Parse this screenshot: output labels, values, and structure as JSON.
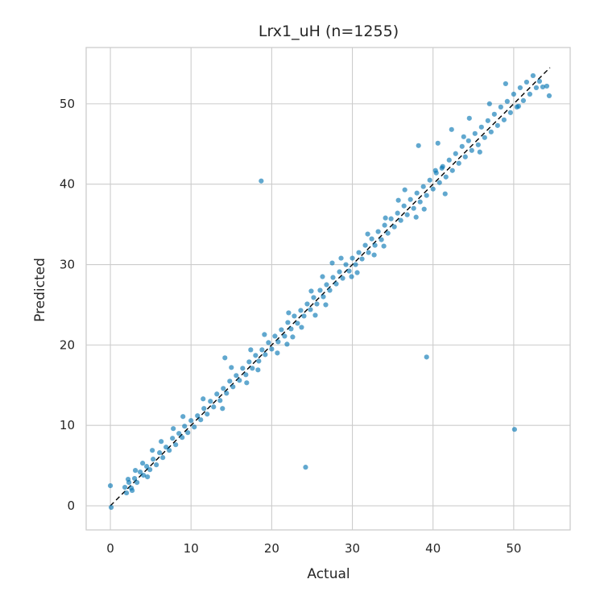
{
  "chart_data": {
    "type": "scatter",
    "title": "Lrx1_uH  (n=1255)",
    "xlabel": "Actual",
    "ylabel": "Predicted",
    "xlim": [
      -3,
      57
    ],
    "ylim": [
      -3,
      57
    ],
    "xticks": [
      0,
      10,
      20,
      30,
      40,
      50
    ],
    "yticks": [
      0,
      10,
      20,
      30,
      40,
      50
    ],
    "grid": true,
    "point_color": "#0072b2",
    "identity_line": {
      "from": [
        0,
        0
      ],
      "to": [
        54.5,
        54.5
      ],
      "color": "#000000",
      "style": "dashed"
    },
    "n_points": 1255,
    "points": [
      [
        0.0,
        2.5
      ],
      [
        0.1,
        -0.2
      ],
      [
        1.8,
        2.3
      ],
      [
        2.0,
        1.6
      ],
      [
        2.3,
        2.9
      ],
      [
        2.6,
        2.2
      ],
      [
        3.0,
        3.4
      ],
      [
        3.3,
        2.9
      ],
      [
        3.7,
        4.2
      ],
      [
        4.1,
        3.8
      ],
      [
        4.5,
        4.9
      ],
      [
        4.9,
        4.5
      ],
      [
        5.3,
        5.8
      ],
      [
        5.7,
        5.1
      ],
      [
        6.1,
        6.6
      ],
      [
        6.5,
        6.0
      ],
      [
        6.9,
        7.3
      ],
      [
        7.3,
        6.9
      ],
      [
        7.7,
        8.4
      ],
      [
        8.1,
        7.6
      ],
      [
        8.5,
        9.0
      ],
      [
        8.9,
        8.5
      ],
      [
        9.2,
        9.9
      ],
      [
        9.6,
        9.1
      ],
      [
        10.0,
        10.6
      ],
      [
        10.4,
        9.8
      ],
      [
        10.8,
        11.2
      ],
      [
        11.2,
        10.7
      ],
      [
        11.6,
        12.1
      ],
      [
        12.0,
        11.4
      ],
      [
        12.4,
        13.0
      ],
      [
        12.8,
        12.3
      ],
      [
        13.2,
        13.9
      ],
      [
        13.6,
        13.1
      ],
      [
        14.0,
        14.6
      ],
      [
        14.4,
        14.0
      ],
      [
        14.8,
        15.5
      ],
      [
        15.2,
        14.8
      ],
      [
        15.6,
        16.2
      ],
      [
        16.0,
        15.6
      ],
      [
        16.4,
        17.1
      ],
      [
        16.8,
        16.3
      ],
      [
        17.2,
        17.9
      ],
      [
        17.6,
        17.1
      ],
      [
        18.0,
        18.7
      ],
      [
        18.4,
        18.0
      ],
      [
        18.8,
        19.4
      ],
      [
        19.2,
        18.8
      ],
      [
        19.6,
        20.3
      ],
      [
        20.0,
        19.5
      ],
      [
        20.4,
        21.1
      ],
      [
        20.8,
        20.4
      ],
      [
        21.2,
        21.9
      ],
      [
        21.6,
        21.1
      ],
      [
        22.0,
        22.8
      ],
      [
        22.4,
        22.0
      ],
      [
        22.8,
        23.6
      ],
      [
        23.2,
        22.7
      ],
      [
        23.6,
        24.3
      ],
      [
        24.0,
        23.6
      ],
      [
        24.4,
        25.1
      ],
      [
        24.8,
        24.4
      ],
      [
        25.2,
        25.9
      ],
      [
        25.6,
        25.1
      ],
      [
        26.0,
        26.8
      ],
      [
        26.4,
        26.0
      ],
      [
        26.8,
        27.5
      ],
      [
        27.2,
        26.8
      ],
      [
        27.6,
        28.4
      ],
      [
        28.0,
        27.6
      ],
      [
        28.4,
        29.1
      ],
      [
        28.8,
        28.3
      ],
      [
        29.2,
        30.0
      ],
      [
        29.6,
        29.2
      ],
      [
        30.0,
        30.8
      ],
      [
        30.4,
        30.0
      ],
      [
        30.8,
        31.5
      ],
      [
        31.2,
        30.7
      ],
      [
        31.6,
        32.4
      ],
      [
        32.0,
        31.5
      ],
      [
        32.4,
        33.2
      ],
      [
        32.8,
        32.4
      ],
      [
        33.2,
        34.1
      ],
      [
        33.6,
        33.1
      ],
      [
        34.0,
        34.9
      ],
      [
        34.4,
        33.9
      ],
      [
        34.8,
        35.7
      ],
      [
        35.2,
        34.7
      ],
      [
        35.6,
        36.4
      ],
      [
        36.0,
        35.5
      ],
      [
        36.4,
        37.3
      ],
      [
        36.8,
        36.2
      ],
      [
        37.2,
        38.1
      ],
      [
        37.6,
        37.0
      ],
      [
        38.0,
        38.9
      ],
      [
        38.4,
        37.8
      ],
      [
        38.8,
        39.7
      ],
      [
        39.2,
        38.6
      ],
      [
        39.6,
        40.5
      ],
      [
        40.0,
        39.4
      ],
      [
        40.4,
        41.4
      ],
      [
        40.8,
        40.2
      ],
      [
        41.2,
        42.2
      ],
      [
        41.6,
        40.9
      ],
      [
        42.0,
        43.0
      ],
      [
        42.4,
        41.7
      ],
      [
        42.8,
        43.8
      ],
      [
        43.2,
        42.6
      ],
      [
        43.6,
        44.7
      ],
      [
        44.0,
        43.4
      ],
      [
        44.4,
        45.4
      ],
      [
        44.8,
        44.2
      ],
      [
        45.2,
        46.3
      ],
      [
        45.6,
        44.9
      ],
      [
        46.0,
        47.1
      ],
      [
        46.4,
        45.8
      ],
      [
        46.8,
        47.9
      ],
      [
        47.2,
        46.5
      ],
      [
        47.6,
        48.7
      ],
      [
        48.0,
        47.3
      ],
      [
        48.4,
        49.6
      ],
      [
        48.8,
        48.0
      ],
      [
        49.2,
        50.3
      ],
      [
        49.6,
        48.9
      ],
      [
        50.0,
        51.2
      ],
      [
        50.4,
        49.6
      ],
      [
        50.8,
        52.0
      ],
      [
        51.2,
        50.4
      ],
      [
        51.6,
        52.7
      ],
      [
        52.0,
        51.2
      ],
      [
        52.4,
        53.5
      ],
      [
        52.8,
        52.0
      ],
      [
        53.2,
        52.8
      ],
      [
        53.6,
        52.1
      ],
      [
        54.1,
        52.2
      ],
      [
        54.4,
        51.0
      ],
      [
        38.2,
        44.8
      ],
      [
        40.6,
        45.1
      ],
      [
        42.3,
        46.8
      ],
      [
        44.5,
        48.2
      ],
      [
        41.1,
        42.0
      ],
      [
        43.8,
        45.9
      ],
      [
        47.0,
        50.0
      ],
      [
        49.0,
        52.5
      ],
      [
        45.8,
        44.0
      ],
      [
        50.6,
        49.7
      ],
      [
        36.5,
        39.3
      ],
      [
        38.9,
        36.9
      ],
      [
        41.5,
        38.8
      ],
      [
        40.3,
        41.7
      ],
      [
        35.7,
        38.0
      ],
      [
        34.1,
        35.8
      ],
      [
        31.9,
        33.8
      ],
      [
        27.5,
        30.2
      ],
      [
        26.3,
        28.5
      ],
      [
        24.9,
        26.7
      ],
      [
        22.1,
        24.0
      ],
      [
        21.9,
        20.1
      ],
      [
        23.7,
        22.2
      ],
      [
        25.4,
        23.7
      ],
      [
        29.9,
        28.5
      ],
      [
        32.7,
        31.2
      ],
      [
        33.9,
        32.3
      ],
      [
        28.6,
        30.8
      ],
      [
        19.1,
        21.3
      ],
      [
        17.4,
        19.4
      ],
      [
        15.0,
        17.2
      ],
      [
        14.2,
        18.4
      ],
      [
        13.9,
        12.1
      ],
      [
        11.5,
        13.3
      ],
      [
        9.0,
        11.1
      ],
      [
        7.8,
        9.6
      ],
      [
        6.3,
        8.0
      ],
      [
        5.2,
        6.9
      ],
      [
        4.0,
        5.3
      ],
      [
        3.1,
        4.4
      ],
      [
        2.2,
        3.3
      ],
      [
        2.7,
        1.9
      ],
      [
        4.6,
        3.6
      ],
      [
        16.9,
        15.3
      ],
      [
        18.3,
        16.9
      ],
      [
        20.7,
        19.0
      ],
      [
        22.6,
        21.0
      ],
      [
        26.7,
        25.0
      ],
      [
        30.6,
        29.0
      ],
      [
        37.9,
        35.9
      ],
      [
        18.7,
        40.4
      ],
      [
        39.2,
        18.5
      ],
      [
        24.2,
        4.8
      ],
      [
        50.1,
        9.5
      ]
    ]
  }
}
